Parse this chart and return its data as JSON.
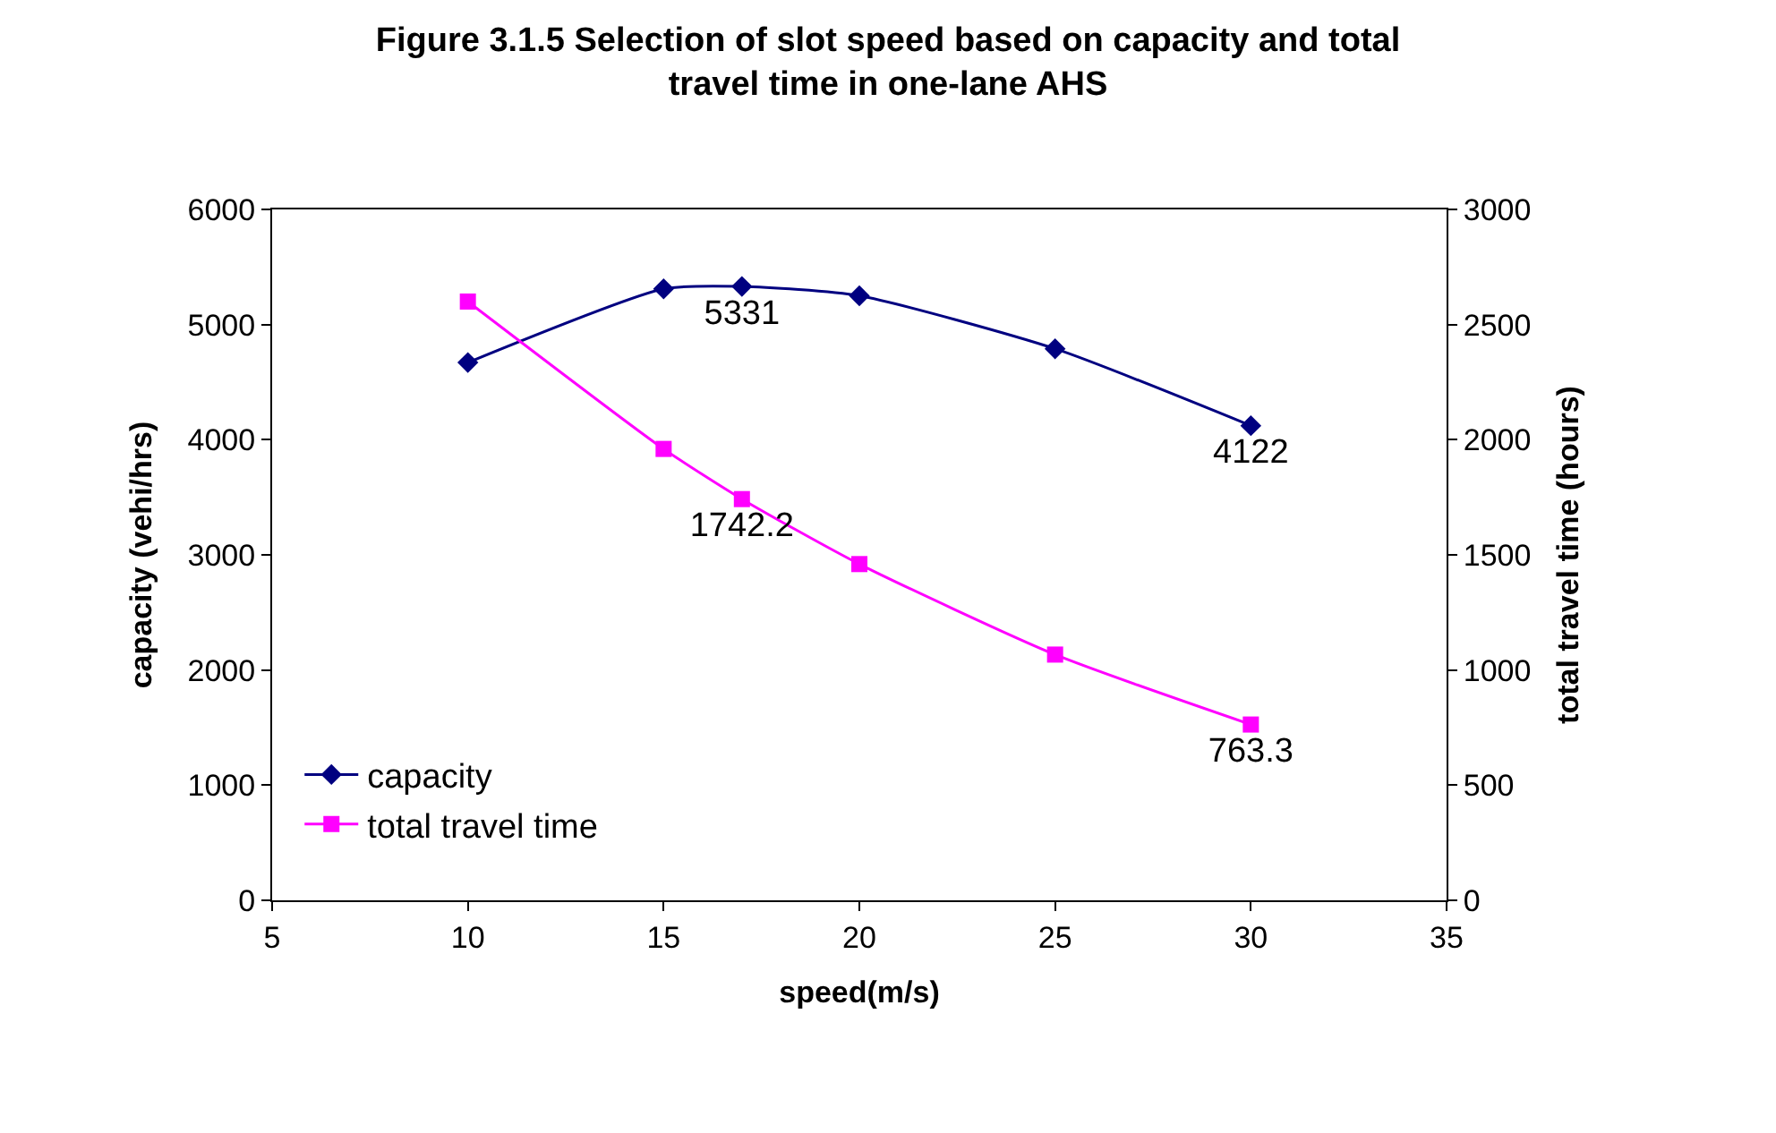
{
  "chart_data": {
    "type": "line",
    "title": "Figure 3.1.5 Selection of slot speed based on capacity and total\ntravel time in one-lane AHS",
    "xlabel": "speed(m/s)",
    "ylabel": "capacity (vehi/hrs)",
    "y2label": "total travel time (hours)",
    "x": [
      10,
      15,
      17,
      20,
      25,
      30
    ],
    "series": [
      {
        "name": "capacity",
        "color": "#000080",
        "marker": "diamond",
        "values": [
          4670,
          5310,
          5331,
          5250,
          4790,
          4122
        ],
        "value_labels": [
          null,
          null,
          "5331",
          null,
          null,
          "4122"
        ]
      },
      {
        "name": "total travel time",
        "color": "#ff00ff",
        "marker": "square",
        "axis": "y2",
        "values": [
          2600,
          1960,
          1742.2,
          1460,
          1067,
          763.3
        ],
        "value_labels": [
          null,
          null,
          "1742.2",
          null,
          null,
          "763.3"
        ]
      }
    ],
    "xlim": [
      5,
      35
    ],
    "xticks": [
      5,
      10,
      15,
      20,
      25,
      30,
      35
    ],
    "ylim": [
      0,
      6000
    ],
    "yticks": [
      0,
      1000,
      2000,
      3000,
      4000,
      5000,
      6000
    ],
    "y2lim": [
      0,
      3000
    ],
    "y2ticks": [
      0,
      500,
      1000,
      1500,
      2000,
      2500,
      3000
    ],
    "legend": "bottom left",
    "line_style": "solid"
  }
}
